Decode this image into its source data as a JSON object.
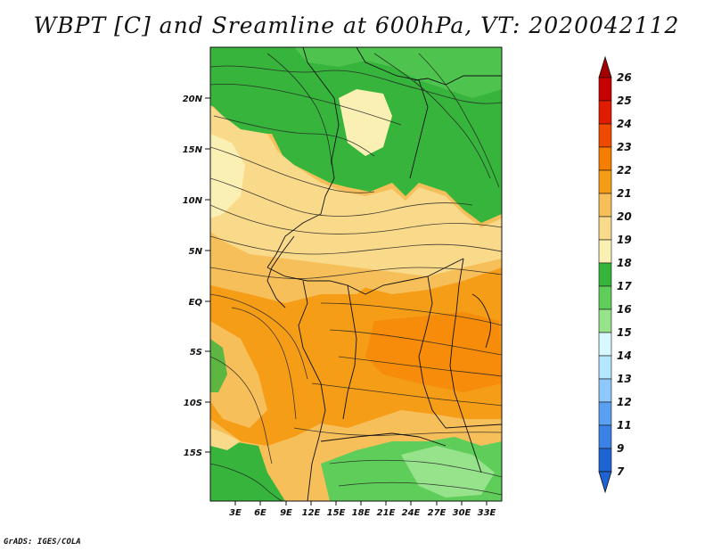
{
  "title": "WBPT [C] and Sreamline at 600hPa, VT: 2020042112",
  "credit": "GrADS: IGES/COLA",
  "map": {
    "lat_labels": [
      "20N",
      "15N",
      "10N",
      "5N",
      "EQ",
      "5S",
      "10S",
      "15S"
    ],
    "lon_labels": [
      "3E",
      "6E",
      "9E",
      "12E",
      "15E",
      "18E",
      "21E",
      "24E",
      "27E",
      "30E",
      "33E"
    ]
  },
  "colorbar": {
    "labels": [
      "26",
      "25",
      "24",
      "23",
      "22",
      "21",
      "20",
      "19",
      "18",
      "17",
      "16",
      "15",
      "14",
      "13",
      "12",
      "11",
      "9",
      "7"
    ],
    "colors": [
      "#a50000",
      "#c80000",
      "#e11b00",
      "#f04a00",
      "#f57d00",
      "#f59d16",
      "#f7bf5a",
      "#f9d98a",
      "#fbf0b4",
      "#36b43c",
      "#5fcd5a",
      "#96e38c",
      "#d7f8ff",
      "#b4e6ff",
      "#8ec8fa",
      "#5aa0f0",
      "#3c82e6",
      "#1e64d2"
    ]
  }
}
